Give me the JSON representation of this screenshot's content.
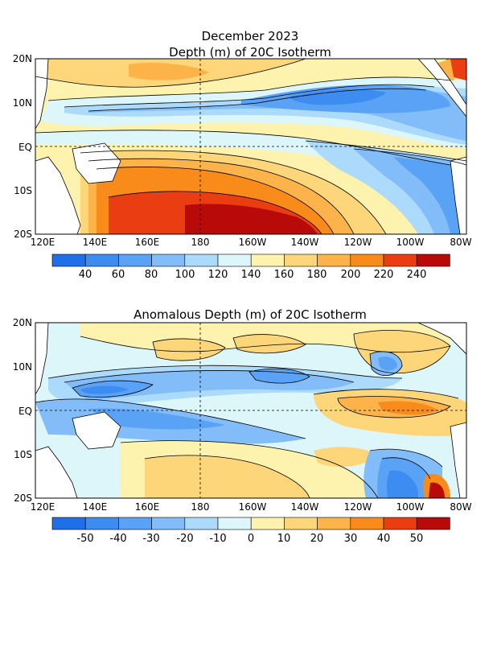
{
  "header": {
    "date": "December 2023"
  },
  "panels": [
    {
      "title": "Depth (m) of 20C Isotherm",
      "lat_labels": [
        "20N",
        "10N",
        "EQ",
        "10S",
        "20S"
      ],
      "lon_labels": [
        "120E",
        "140E",
        "160E",
        "180",
        "160W",
        "140W",
        "120W",
        "100W",
        "80W"
      ],
      "colorbar": {
        "labels": [
          "40",
          "60",
          "80",
          "100",
          "120",
          "140",
          "160",
          "180",
          "200",
          "220",
          "240"
        ],
        "colors": [
          "#1f6fe8",
          "#3d8cf2",
          "#5aa2f6",
          "#82bdf9",
          "#abdafb",
          "#ddf6fa",
          "#fdf3ae",
          "#fdd67a",
          "#fcb34a",
          "#f88b1a",
          "#ea3d12",
          "#b80b09"
        ]
      }
    },
    {
      "title": "Anomalous Depth (m) of 20C Isotherm",
      "lat_labels": [
        "20N",
        "10N",
        "EQ",
        "10S",
        "20S"
      ],
      "lon_labels": [
        "120E",
        "140E",
        "160E",
        "180",
        "160W",
        "140W",
        "120W",
        "100W",
        "80W"
      ],
      "colorbar": {
        "labels": [
          "-50",
          "-40",
          "-30",
          "-20",
          "-10",
          "0",
          "10",
          "20",
          "30",
          "40",
          "50"
        ],
        "colors": [
          "#1f6fe8",
          "#3d8cf2",
          "#5aa2f6",
          "#82bdf9",
          "#abdafb",
          "#ddf6fa",
          "#fdf3ae",
          "#fdd67a",
          "#fcb34a",
          "#f88b1a",
          "#ea3d12",
          "#b80b09"
        ]
      }
    }
  ]
}
